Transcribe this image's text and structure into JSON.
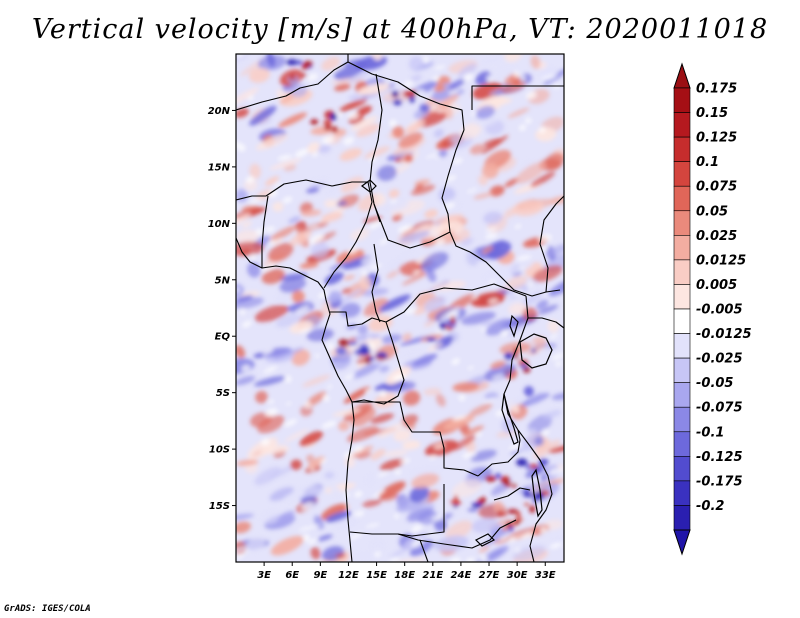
{
  "title": "Vertical velocity [m/s] at 400hPa, VT: 2020011018",
  "credit": "GrADS: IGES/COLA",
  "map": {
    "lon_range": [
      0,
      35
    ],
    "lat_range": [
      -20,
      25
    ],
    "lat_ticks": [
      {
        "value": 20,
        "label": "20N"
      },
      {
        "value": 15,
        "label": "15N"
      },
      {
        "value": 10,
        "label": "10N"
      },
      {
        "value": 5,
        "label": "5N"
      },
      {
        "value": 0,
        "label": "EQ"
      },
      {
        "value": -5,
        "label": "5S"
      },
      {
        "value": -10,
        "label": "10S"
      },
      {
        "value": -15,
        "label": "15S"
      }
    ],
    "lon_ticks": [
      {
        "value": 3,
        "label": "3E"
      },
      {
        "value": 6,
        "label": "6E"
      },
      {
        "value": 9,
        "label": "9E"
      },
      {
        "value": 12,
        "label": "12E"
      },
      {
        "value": 15,
        "label": "15E"
      },
      {
        "value": 18,
        "label": "18E"
      },
      {
        "value": 21,
        "label": "21E"
      },
      {
        "value": 24,
        "label": "24E"
      },
      {
        "value": 27,
        "label": "27E"
      },
      {
        "value": 30,
        "label": "30E"
      },
      {
        "value": 33,
        "label": "33E"
      }
    ]
  },
  "colorbar": {
    "levels": [
      {
        "label": "0.175",
        "color": "#a50f15"
      },
      {
        "label": "0.15",
        "color": "#b5191f"
      },
      {
        "label": "0.125",
        "color": "#c62d2d"
      },
      {
        "label": "0.1",
        "color": "#d4453e"
      },
      {
        "label": "0.075",
        "color": "#e06659"
      },
      {
        "label": "0.05",
        "color": "#ea8a7c"
      },
      {
        "label": "0.025",
        "color": "#f3ada1"
      },
      {
        "label": "0.0125",
        "color": "#f9cdc5"
      },
      {
        "label": "0.005",
        "color": "#fde6e1"
      },
      {
        "label": "-0.005",
        "color": "#ffffff"
      },
      {
        "label": "-0.0125",
        "color": "#e2e2fb"
      },
      {
        "label": "-0.025",
        "color": "#c7c6f6"
      },
      {
        "label": "-0.05",
        "color": "#a9a7ef"
      },
      {
        "label": "-0.075",
        "color": "#8b88e6"
      },
      {
        "label": "-0.1",
        "color": "#6d69dc"
      },
      {
        "label": "-0.125",
        "color": "#524ccf"
      },
      {
        "label": "-0.175",
        "color": "#3a31c0"
      },
      {
        "label": "-0.2",
        "color": "#2a1fb0"
      }
    ],
    "top_color": "#9b0f14",
    "bottom_color": "#1f14a8"
  }
}
